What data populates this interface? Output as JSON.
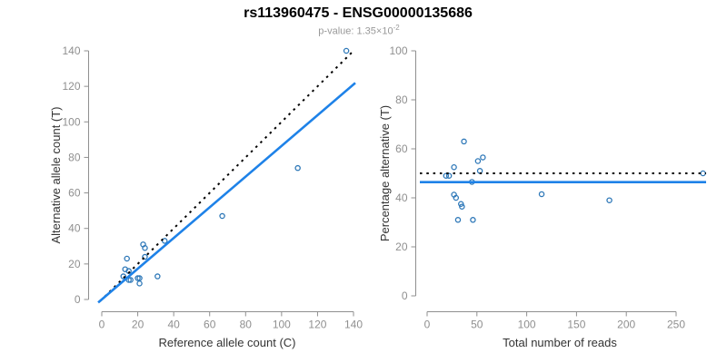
{
  "header": {
    "title": "rs113960475 - ENSG00000135686",
    "pvalue_prefix": "p-value: 1.35×10",
    "pvalue_exponent": "-2"
  },
  "colors": {
    "title": "#000000",
    "subtitle": "#999999",
    "point": "#2e78b8",
    "fit_line": "#1e82e8",
    "dotted_line": "#000000",
    "axis": "#8f8f8f",
    "tick_label": "#8f8f8f",
    "axis_title": "#333333"
  },
  "chart_data": [
    {
      "type": "scatter",
      "panel": "allele-counts",
      "xlabel": "Reference allele count (C)",
      "ylabel": "Alternative allele count (T)",
      "xlim": [
        0,
        140
      ],
      "ylim": [
        0,
        140
      ],
      "xticks": [
        0,
        20,
        40,
        60,
        80,
        100,
        120,
        140
      ],
      "yticks": [
        0,
        20,
        40,
        60,
        80,
        100,
        120,
        140
      ],
      "grid": false,
      "legend": "none",
      "marker": "open-circle",
      "points": [
        [
          12,
          13
        ],
        [
          13,
          17
        ],
        [
          14,
          23
        ],
        [
          15,
          16
        ],
        [
          15,
          11
        ],
        [
          16,
          11
        ],
        [
          20,
          12
        ],
        [
          21,
          12
        ],
        [
          21,
          9
        ],
        [
          23,
          31
        ],
        [
          24,
          29
        ],
        [
          24,
          24
        ],
        [
          31,
          13
        ],
        [
          35,
          33
        ],
        [
          67,
          47
        ],
        [
          109,
          74
        ],
        [
          136,
          140
        ]
      ],
      "lines": [
        {
          "name": "identity-line",
          "style": "dotted",
          "from": [
            -1,
            -1
          ],
          "to": [
            139.5,
            139.5
          ]
        },
        {
          "name": "fit-line",
          "style": "solid",
          "from": [
            -2,
            -1.7
          ],
          "to": [
            141,
            121.9
          ]
        }
      ]
    },
    {
      "type": "scatter",
      "panel": "percentage-vs-coverage",
      "xlabel": "Total number of reads",
      "ylabel": "Percentage alternative (T)",
      "xlim": [
        0,
        275
      ],
      "ylim": [
        0,
        100
      ],
      "xticks": [
        0,
        50,
        100,
        150,
        200,
        250
      ],
      "yticks": [
        0,
        20,
        40,
        60,
        80,
        100
      ],
      "grid": false,
      "legend": "none",
      "marker": "open-circle",
      "points": [
        [
          19,
          49
        ],
        [
          22,
          49
        ],
        [
          27,
          52.5
        ],
        [
          37,
          63
        ],
        [
          45,
          46.5
        ],
        [
          51,
          55
        ],
        [
          53,
          51
        ],
        [
          56,
          56.5
        ],
        [
          27,
          41.3
        ],
        [
          29,
          40
        ],
        [
          34,
          37.5
        ],
        [
          35,
          36.4
        ],
        [
          31,
          31
        ],
        [
          46,
          31
        ],
        [
          115,
          41.5
        ],
        [
          183,
          39
        ],
        [
          277,
          50
        ]
      ],
      "lines": [
        {
          "name": "null-line",
          "style": "dotted",
          "y": 50
        },
        {
          "name": "fit-line",
          "style": "solid",
          "y": 46.4
        }
      ]
    }
  ]
}
